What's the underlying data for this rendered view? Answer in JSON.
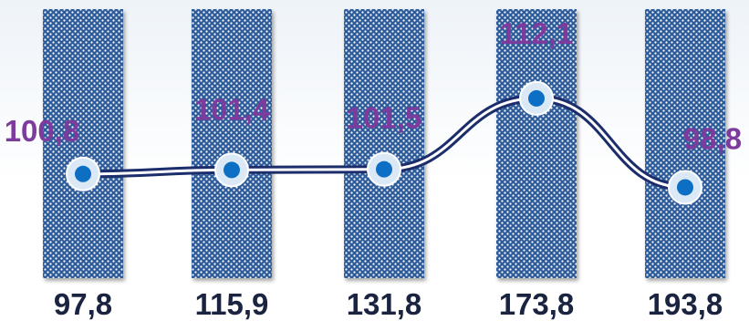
{
  "chart_data": {
    "type": "bar",
    "categories": [
      "",
      "",
      "",
      "",
      ""
    ],
    "bar_values": [
      97.8,
      115.9,
      131.8,
      173.8,
      193.8
    ],
    "bar_labels": [
      "97,8",
      "115,9",
      "131,8",
      "173,8",
      "193,8"
    ],
    "series": [
      {
        "type": "line",
        "values": [
          100.8,
          101.4,
          101.5,
          112.1,
          98.8
        ],
        "labels": [
          "100,8",
          "101,4",
          "101,5",
          "112,1",
          "98,8"
        ]
      }
    ],
    "title": "",
    "xlabel": "",
    "ylabel": "",
    "line_ylim": [
      90,
      120
    ],
    "grid": false,
    "colors": {
      "bar_fill": "#2f5c9a",
      "bar_pattern_dots": "#ffffff",
      "line": "#1b2d6b",
      "marker_outer": "#dbe9f7",
      "marker_inner": "#0c6fc4",
      "bar_label": "#1a2340",
      "line_label": "#7e3b9e"
    }
  }
}
